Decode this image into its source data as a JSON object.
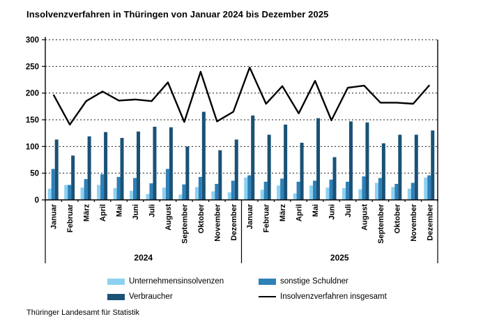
{
  "title": "Insolvenzverfahren in Thüringen von Januar 2024 bis Dezember 2025",
  "footer": "Thüringer Landesamt für Statistik",
  "chart_data": {
    "type": "bar",
    "subtype": "grouped bars with overlaid line",
    "title": "Insolvenzverfahren in Thüringen von Januar 2024 bis Dezember 2025",
    "xlabel": "",
    "ylabel": "",
    "ylim": [
      0,
      300
    ],
    "ytick_step": 50,
    "yticks": [
      0,
      50,
      100,
      150,
      200,
      250,
      300
    ],
    "grid": "horizontal dashed",
    "legend_position": "bottom",
    "categories": [
      "Januar",
      "Februar",
      "März",
      "April",
      "Mai",
      "Juni",
      "Juli",
      "August",
      "September",
      "Oktober",
      "November",
      "Dezember",
      "Januar",
      "Februar",
      "März",
      "April",
      "Mai",
      "Juni",
      "Juli",
      "August",
      "September",
      "Oktober",
      "November",
      "Dezember"
    ],
    "year_groups": [
      {
        "label": "2024",
        "span": 12
      },
      {
        "label": "2025",
        "span": 12
      }
    ],
    "series": [
      {
        "name": "Unternehmensinsolvenzen",
        "type": "bar",
        "color": "#8CD1F1",
        "values": [
          21,
          28,
          23,
          28,
          22,
          17,
          11,
          23,
          10,
          24,
          16,
          14,
          42,
          19,
          27,
          12,
          27,
          23,
          22,
          20,
          32,
          24,
          21,
          42
        ]
      },
      {
        "name": "sonstige Schuldner",
        "type": "bar",
        "color": "#2E80B9",
        "values": [
          58,
          28,
          39,
          48,
          43,
          41,
          31,
          58,
          29,
          43,
          30,
          36,
          46,
          34,
          40,
          34,
          36,
          38,
          34,
          44,
          41,
          30,
          32,
          46
        ]
      },
      {
        "name": "Verbraucher",
        "type": "bar",
        "color": "#1A5276",
        "values": [
          113,
          83,
          119,
          127,
          116,
          128,
          137,
          136,
          100,
          165,
          93,
          113,
          158,
          122,
          141,
          107,
          153,
          80,
          147,
          145,
          106,
          122,
          122,
          130
        ]
      },
      {
        "name": "Insolvenzverfahren insgesamt",
        "type": "line",
        "color": "#000000",
        "values": [
          197,
          141,
          185,
          203,
          186,
          188,
          185,
          220,
          146,
          240,
          147,
          165,
          248,
          180,
          213,
          162,
          223,
          149,
          210,
          214,
          182,
          182,
          180,
          215
        ]
      }
    ]
  }
}
